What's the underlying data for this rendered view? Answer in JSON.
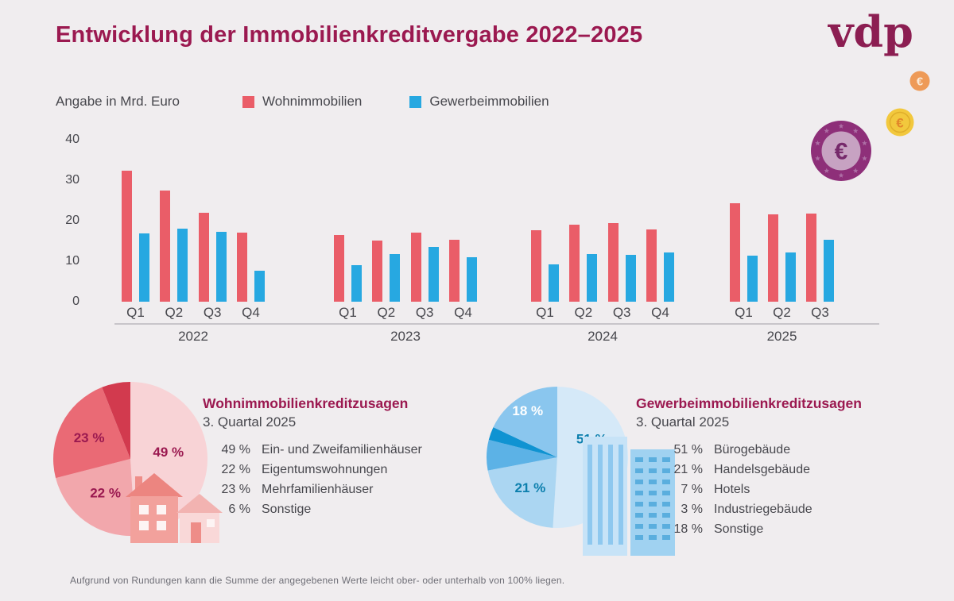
{
  "header": {
    "title": "Entwicklung der Immobilienkreditvergabe 2022–2025",
    "logo": "vdp"
  },
  "legend": {
    "unit_label": "Angabe in Mrd. Euro",
    "items": [
      {
        "label": "Wohnimmobilien",
        "color": "#ea5d68"
      },
      {
        "label": "Gewerbeimmobilien",
        "color": "#27a8e1"
      }
    ]
  },
  "decor": {
    "euro_symbol": "€",
    "coin_small": {
      "outer": "#ee9a57",
      "symbol_color": "#fbe8d4"
    },
    "coin_medium": {
      "outer": "#f2c83d",
      "ring": "#dfae2b",
      "symbol_color": "#e2862a"
    },
    "coin_large": {
      "outer": "#8e2f79",
      "inner": "#c7a2c2",
      "star": "#ad6ea5",
      "symbol_color": "#76296b"
    }
  },
  "chart_data": [
    {
      "type": "bar",
      "title": "Entwicklung der Immobilienkreditvergabe 2022–2025",
      "unit": "Mrd. Euro",
      "ylim": [
        0,
        40
      ],
      "yticks": [
        0,
        10,
        20,
        30,
        40
      ],
      "grid": false,
      "legend_position": "top",
      "series": [
        {
          "name": "Wohnimmobilien",
          "color": "#ea5d68"
        },
        {
          "name": "Gewerbeimmobilien",
          "color": "#27a8e1"
        }
      ],
      "groups": [
        {
          "year": "2022",
          "quarters": [
            "Q1",
            "Q2",
            "Q3",
            "Q4"
          ],
          "values": {
            "Wohnimmobilien": [
              32.4,
              27.5,
              22.0,
              17.1
            ],
            "Gewerbeimmobilien": [
              16.9,
              18.0,
              17.3,
              7.6
            ]
          }
        },
        {
          "year": "2023",
          "quarters": [
            "Q1",
            "Q2",
            "Q3",
            "Q4"
          ],
          "values": {
            "Wohnimmobilien": [
              16.5,
              15.1,
              17.0,
              15.3
            ],
            "Gewerbeimmobilien": [
              9.0,
              11.8,
              13.5,
              11.0
            ]
          }
        },
        {
          "year": "2024",
          "quarters": [
            "Q1",
            "Q2",
            "Q3",
            "Q4"
          ],
          "values": {
            "Wohnimmobilien": [
              17.6,
              19.0,
              19.4,
              17.8
            ],
            "Gewerbeimmobilien": [
              9.2,
              11.8,
              11.6,
              12.2
            ]
          }
        },
        {
          "year": "2025",
          "quarters": [
            "Q1",
            "Q2",
            "Q3"
          ],
          "values": {
            "Wohnimmobilien": [
              24.3,
              21.6,
              21.8
            ],
            "Gewerbeimmobilien": [
              11.4,
              12.2,
              15.3
            ]
          }
        }
      ]
    },
    {
      "type": "pie",
      "title": "Wohnimmobilienkreditzusagen",
      "subtitle": "3. Quartal 2025",
      "labels": [
        "Ein- und Zweifamilienhäuser",
        "Eigentumswohnungen",
        "Mehrfamilienhäuser",
        "Sonstige"
      ],
      "values": [
        49,
        22,
        23,
        6
      ],
      "colors": [
        "#f8d3d6",
        "#f2a7ac",
        "#ea6a75",
        "#d23a4e"
      ],
      "slice_labels": [
        "49 %",
        "22 %",
        "23 %",
        null
      ],
      "slice_label_colors": [
        "#9b1950",
        "#9b1950",
        "#9b1950",
        null
      ],
      "slice_label_angles": [
        80,
        null,
        null,
        null
      ],
      "slice_label_r": [
        0.5,
        0.55,
        0.6,
        null
      ]
    },
    {
      "type": "pie",
      "title": "Gewerbeimmobilienkreditzusagen",
      "subtitle": "3. Quartal 2025",
      "labels": [
        "Bürogebäude",
        "Handelsgebäude",
        "Hotels",
        "Industriegebäude",
        "Sonstige"
      ],
      "values": [
        51,
        21,
        7,
        3,
        18
      ],
      "colors": [
        "#d5e9f8",
        "#abd6f2",
        "#5cb2e6",
        "#0f93d2",
        "#8ac6ee"
      ],
      "slice_labels": [
        "51 %",
        "21 %",
        null,
        null,
        "18 %"
      ],
      "slice_label_colors": [
        "#0c7fad",
        "#0c7fad",
        null,
        null,
        "#ffffff"
      ],
      "slice_label_angles": [
        62,
        null,
        null,
        null,
        null
      ],
      "slice_label_r": [
        0.55,
        0.58,
        null,
        null,
        0.78
      ]
    }
  ],
  "footnote": "Aufgrund von Rundungen kann die Summe der angegebenen Werte leicht ober- oder unterhalb von 100% liegen."
}
